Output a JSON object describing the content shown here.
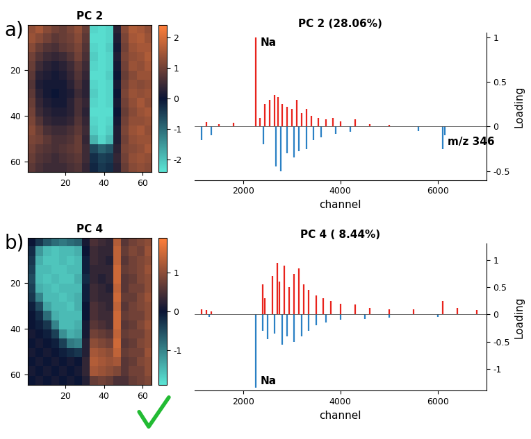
{
  "chart_data": [
    {
      "type": "heatmap",
      "panel_label": "a)",
      "title": "PC 2",
      "xlim": [
        0.5,
        64.5
      ],
      "ylim": [
        64.5,
        0.5
      ],
      "xticks": [
        20,
        40,
        60
      ],
      "yticks": [
        20,
        40,
        60
      ],
      "clim": [
        -2.4,
        2.4
      ],
      "cticks": [
        -2,
        -1,
        0,
        1,
        2
      ],
      "cells": [
        [
          1.3,
          1.5,
          1.2,
          1.0,
          0.9,
          1.1,
          1.3,
          0.9,
          -2.2,
          -2.3,
          -2.2,
          0.3,
          1.2,
          1.6,
          1.5,
          1.3
        ],
        [
          1.4,
          1.2,
          1.0,
          0.8,
          0.9,
          1.0,
          1.2,
          0.8,
          -2.3,
          -2.3,
          -2.2,
          0.2,
          1.1,
          1.5,
          1.6,
          1.4
        ],
        [
          1.2,
          0.9,
          0.7,
          0.6,
          0.8,
          0.9,
          1.1,
          0.7,
          -2.2,
          -2.3,
          -2.1,
          0.1,
          1.0,
          1.4,
          1.5,
          1.5
        ],
        [
          1.0,
          0.7,
          0.5,
          0.4,
          0.5,
          0.7,
          1.0,
          0.6,
          -2.1,
          -2.3,
          -2.2,
          0.2,
          1.1,
          1.3,
          1.4,
          1.6
        ],
        [
          0.9,
          0.5,
          0.3,
          0.2,
          0.3,
          0.5,
          0.8,
          0.5,
          -2.2,
          -2.3,
          -2.2,
          0.1,
          1.0,
          1.4,
          1.3,
          1.5
        ],
        [
          0.8,
          0.3,
          0.2,
          0.1,
          0.2,
          0.4,
          0.7,
          0.4,
          -2.3,
          -2.3,
          -2.1,
          0.0,
          0.9,
          1.2,
          1.4,
          1.4
        ],
        [
          0.7,
          0.2,
          0.1,
          0.1,
          0.1,
          0.3,
          0.6,
          0.3,
          -2.2,
          -2.3,
          -2.2,
          0.1,
          1.0,
          1.3,
          1.2,
          1.3
        ],
        [
          0.8,
          0.3,
          0.1,
          0.0,
          0.1,
          0.2,
          0.5,
          0.3,
          -2.1,
          -2.3,
          -2.2,
          0.0,
          1.1,
          1.4,
          1.3,
          1.4
        ],
        [
          0.9,
          0.4,
          0.2,
          0.1,
          0.1,
          0.3,
          0.6,
          0.4,
          -2.2,
          -2.3,
          -2.2,
          0.1,
          1.0,
          1.3,
          1.5,
          1.3
        ],
        [
          1.0,
          0.5,
          0.3,
          0.2,
          0.2,
          0.3,
          0.6,
          0.3,
          -2.3,
          -2.3,
          -2.3,
          0.0,
          0.9,
          1.2,
          1.4,
          1.5
        ],
        [
          1.1,
          0.7,
          0.4,
          0.3,
          0.3,
          0.4,
          0.7,
          0.4,
          -2.2,
          -2.3,
          -2.2,
          0.1,
          1.0,
          1.3,
          1.3,
          1.4
        ],
        [
          1.2,
          0.9,
          0.6,
          0.5,
          0.5,
          0.6,
          0.8,
          0.5,
          -2.1,
          -2.3,
          -2.1,
          0.2,
          1.1,
          1.4,
          1.5,
          1.3
        ],
        [
          1.1,
          1.0,
          0.8,
          0.6,
          0.6,
          0.7,
          0.9,
          0.4,
          -1.8,
          -2.2,
          -1.9,
          0.2,
          1.0,
          1.3,
          1.4,
          1.4
        ],
        [
          1.0,
          0.8,
          0.7,
          0.6,
          0.7,
          0.8,
          0.9,
          0.5,
          -0.6,
          -0.9,
          -0.7,
          0.3,
          1.1,
          1.2,
          1.3,
          1.5
        ],
        [
          0.9,
          0.7,
          0.6,
          0.5,
          0.6,
          0.7,
          0.8,
          0.5,
          -0.3,
          -0.5,
          -0.4,
          0.4,
          1.0,
          1.3,
          1.4,
          1.3
        ],
        [
          0.8,
          0.6,
          0.5,
          0.5,
          0.5,
          0.6,
          0.7,
          0.4,
          -0.2,
          -0.4,
          -0.3,
          0.3,
          0.9,
          1.2,
          1.3,
          1.2
        ]
      ]
    },
    {
      "type": "bar",
      "title": "PC 2 (28.06%)",
      "x_label": "channel",
      "y_label": "Loading",
      "xlim": [
        1000,
        7000
      ],
      "xticks": [
        2000,
        4000,
        6000
      ],
      "ylim": [
        -0.6,
        1.05
      ],
      "yticks": [
        -0.5,
        0,
        0.5,
        1
      ],
      "series": [
        {
          "color": "#e8231c",
          "x": [
            1250,
            1500,
            1800,
            2260,
            2350,
            2450,
            2550,
            2650,
            2720,
            2800,
            2900,
            3000,
            3100,
            3200,
            3300,
            3400,
            3550,
            3700,
            3850,
            4000,
            4300,
            4600,
            5000
          ],
          "values": [
            0.05,
            0.03,
            0.04,
            1.0,
            0.1,
            0.25,
            0.3,
            0.35,
            0.33,
            0.25,
            0.22,
            0.2,
            0.3,
            0.15,
            0.2,
            0.12,
            0.1,
            0.08,
            0.1,
            0.06,
            0.08,
            0.03,
            0.02
          ]
        },
        {
          "color": "#2a80c4",
          "x": [
            1150,
            1350,
            2420,
            2680,
            2780,
            2900,
            3050,
            3150,
            3300,
            3450,
            3600,
            3900,
            4200,
            5600,
            6100,
            6150
          ],
          "values": [
            -0.15,
            -0.1,
            -0.2,
            -0.45,
            -0.5,
            -0.3,
            -0.35,
            -0.28,
            -0.25,
            -0.15,
            -0.12,
            -0.08,
            -0.06,
            -0.05,
            -0.25,
            -0.1
          ]
        }
      ],
      "annotations": [
        {
          "text": "Na",
          "x": 2260
        },
        {
          "text": "m/z 346",
          "x": 6100
        }
      ]
    },
    {
      "type": "heatmap",
      "panel_label": "b)",
      "title": "PC 4",
      "xlim": [
        0.5,
        64.5
      ],
      "ylim": [
        64.5,
        0.5
      ],
      "xticks": [
        20,
        40,
        60
      ],
      "yticks": [
        20,
        40,
        60
      ],
      "clim": [
        -1.9,
        1.9
      ],
      "cticks": [
        -1,
        0,
        1
      ],
      "cells": [
        [
          0.0,
          -0.3,
          -0.6,
          -0.8,
          -0.9,
          -0.8,
          -0.7,
          0.1,
          0.5,
          0.4,
          0.3,
          1.3,
          0.6,
          0.8,
          0.9,
          1.0
        ],
        [
          -0.2,
          -1.2,
          -1.5,
          -1.6,
          -1.5,
          -1.5,
          -1.4,
          0.0,
          0.4,
          0.3,
          0.3,
          1.4,
          0.7,
          0.9,
          0.8,
          1.1
        ],
        [
          -0.3,
          -1.4,
          -1.6,
          -1.6,
          -1.5,
          -1.6,
          -1.5,
          -0.1,
          0.4,
          0.3,
          0.2,
          1.4,
          0.6,
          0.8,
          0.9,
          1.0
        ],
        [
          -0.4,
          -1.5,
          -1.5,
          -1.6,
          -1.6,
          -1.5,
          -1.5,
          -0.1,
          0.3,
          0.3,
          0.3,
          1.5,
          0.7,
          0.8,
          0.9,
          1.1
        ],
        [
          -0.5,
          -1.5,
          -1.6,
          -1.5,
          -1.6,
          -1.6,
          -1.4,
          -0.2,
          0.3,
          0.2,
          0.3,
          1.5,
          0.6,
          0.7,
          0.9,
          1.0
        ],
        [
          -0.4,
          -1.4,
          -1.5,
          -1.6,
          -1.5,
          -1.5,
          -1.5,
          -0.1,
          0.4,
          0.3,
          0.2,
          1.4,
          0.6,
          0.8,
          0.8,
          1.0
        ],
        [
          -0.3,
          -1.0,
          -1.5,
          -1.5,
          -1.6,
          -1.5,
          -1.4,
          -0.1,
          0.4,
          0.3,
          0.3,
          1.5,
          0.7,
          0.7,
          0.9,
          1.1
        ],
        [
          -0.1,
          -0.5,
          -1.3,
          -1.5,
          -1.5,
          -1.6,
          -1.4,
          0.0,
          0.5,
          0.4,
          0.3,
          1.4,
          0.6,
          0.8,
          0.9,
          1.0
        ],
        [
          0.0,
          -0.2,
          -0.8,
          -1.4,
          -1.5,
          -1.5,
          -1.5,
          0.0,
          0.5,
          0.4,
          0.4,
          1.5,
          0.7,
          0.8,
          0.8,
          1.0
        ],
        [
          0.0,
          -0.1,
          -0.3,
          -1.0,
          -1.5,
          -1.5,
          -1.4,
          0.1,
          0.6,
          0.5,
          0.4,
          1.5,
          0.6,
          0.7,
          0.9,
          1.1
        ],
        [
          0.1,
          0.0,
          -0.1,
          -0.4,
          -1.1,
          -1.4,
          -1.3,
          0.1,
          0.8,
          0.7,
          0.6,
          1.4,
          0.7,
          0.8,
          0.8,
          1.0
        ],
        [
          0.0,
          0.1,
          0.0,
          -0.1,
          -0.4,
          -0.9,
          -1.0,
          0.2,
          1.0,
          0.9,
          0.8,
          1.5,
          0.6,
          0.7,
          0.9,
          1.0
        ],
        [
          0.1,
          0.0,
          0.1,
          0.0,
          -0.1,
          -0.2,
          -0.3,
          0.2,
          1.2,
          1.1,
          1.0,
          1.4,
          0.7,
          0.8,
          0.8,
          1.1
        ],
        [
          0.0,
          0.1,
          0.0,
          0.1,
          0.0,
          0.1,
          0.0,
          0.3,
          1.3,
          1.2,
          1.1,
          1.2,
          0.6,
          0.7,
          0.9,
          1.0
        ],
        [
          0.1,
          0.0,
          0.1,
          0.0,
          0.1,
          0.0,
          0.1,
          0.3,
          1.2,
          1.1,
          1.0,
          0.9,
          0.6,
          0.8,
          0.8,
          1.0
        ],
        [
          0.0,
          0.1,
          0.0,
          0.1,
          0.0,
          0.1,
          0.0,
          0.2,
          0.7,
          0.8,
          0.7,
          0.5,
          0.5,
          0.7,
          0.8,
          0.9
        ]
      ]
    },
    {
      "type": "bar",
      "title": "PC 4 ( 8.44%)",
      "x_label": "channel",
      "y_label": "Loading",
      "xlim": [
        1000,
        7000
      ],
      "xticks": [
        2000,
        4000,
        6000
      ],
      "ylim": [
        -1.4,
        1.3
      ],
      "yticks": [
        -1,
        -0.5,
        0,
        0.5,
        1
      ],
      "series": [
        {
          "color": "#e8231c",
          "x": [
            1150,
            1250,
            1350,
            2400,
            2450,
            2600,
            2700,
            2750,
            2850,
            2950,
            3050,
            3150,
            3250,
            3350,
            3500,
            3650,
            3800,
            4000,
            4300,
            4600,
            5000,
            5500,
            6100,
            6400,
            6800
          ],
          "values": [
            0.1,
            0.08,
            0.05,
            0.55,
            0.3,
            0.7,
            0.95,
            0.6,
            0.9,
            0.5,
            0.75,
            0.85,
            0.55,
            0.45,
            0.35,
            0.3,
            0.25,
            0.2,
            0.18,
            0.12,
            0.1,
            0.1,
            0.25,
            0.12,
            0.08
          ]
        },
        {
          "color": "#2a80c4",
          "x": [
            1300,
            2260,
            2400,
            2500,
            2650,
            2800,
            2900,
            3050,
            3200,
            3350,
            3500,
            3700,
            4000,
            4500,
            5000,
            6000
          ],
          "values": [
            -0.05,
            -1.35,
            -0.3,
            -0.45,
            -0.35,
            -0.55,
            -0.4,
            -0.5,
            -0.4,
            -0.3,
            -0.2,
            -0.15,
            -0.1,
            -0.08,
            -0.06,
            -0.05
          ]
        }
      ],
      "annotations": [
        {
          "text": "Na",
          "x": 2260
        }
      ]
    }
  ]
}
